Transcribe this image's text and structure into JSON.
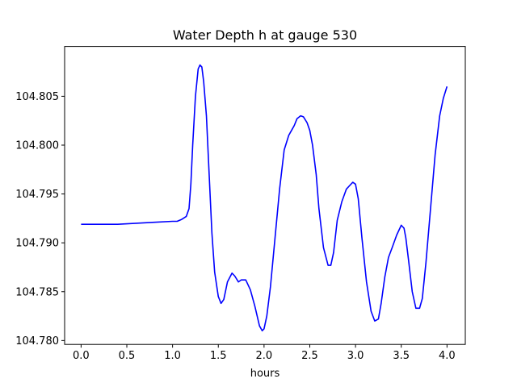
{
  "chart_data": {
    "type": "line",
    "title": "Water Depth h at gauge 530",
    "xlabel": "hours",
    "ylabel": "",
    "xlim": [
      -0.18,
      4.2
    ],
    "ylim": [
      104.7796,
      104.8101
    ],
    "xticks": [
      0.0,
      0.5,
      1.0,
      1.5,
      2.0,
      2.5,
      3.0,
      3.5,
      4.0
    ],
    "xtick_labels": [
      "0.0",
      "0.5",
      "1.0",
      "1.5",
      "2.0",
      "2.5",
      "3.0",
      "3.5",
      "4.0"
    ],
    "yticks": [
      104.78,
      104.785,
      104.79,
      104.795,
      104.8,
      104.805
    ],
    "ytick_labels": [
      "104.780",
      "104.785",
      "104.790",
      "104.795",
      "104.800",
      "104.805"
    ],
    "grid": false,
    "series": [
      {
        "color": "#0000ff",
        "x": [
          0.0,
          0.2,
          0.4,
          0.6,
          0.8,
          1.0,
          1.05,
          1.1,
          1.15,
          1.18,
          1.2,
          1.22,
          1.25,
          1.28,
          1.3,
          1.32,
          1.34,
          1.37,
          1.4,
          1.43,
          1.46,
          1.5,
          1.53,
          1.56,
          1.6,
          1.65,
          1.68,
          1.72,
          1.75,
          1.8,
          1.85,
          1.9,
          1.95,
          1.98,
          2.0,
          2.03,
          2.07,
          2.12,
          2.17,
          2.22,
          2.27,
          2.3,
          2.33,
          2.36,
          2.4,
          2.43,
          2.47,
          2.5,
          2.53,
          2.57,
          2.6,
          2.65,
          2.7,
          2.73,
          2.76,
          2.8,
          2.85,
          2.9,
          2.93,
          2.97,
          3.0,
          3.03,
          3.07,
          3.12,
          3.17,
          3.21,
          3.25,
          3.28,
          3.32,
          3.36,
          3.4,
          3.45,
          3.5,
          3.53,
          3.55,
          3.58,
          3.62,
          3.66,
          3.7,
          3.73,
          3.77,
          3.82,
          3.87,
          3.92,
          3.96,
          4.0
        ],
        "y": [
          104.7919,
          104.7919,
          104.7919,
          104.792,
          104.7921,
          104.7922,
          104.7922,
          104.7924,
          104.7927,
          104.7935,
          104.796,
          104.8,
          104.805,
          104.8078,
          104.8082,
          104.808,
          104.8065,
          104.803,
          104.797,
          104.791,
          104.787,
          104.7845,
          104.7838,
          104.7842,
          104.786,
          104.7869,
          104.7866,
          104.786,
          104.7862,
          104.7862,
          104.7852,
          104.7835,
          104.7815,
          104.781,
          104.7812,
          104.7825,
          104.7855,
          104.7905,
          104.7955,
          104.7995,
          104.801,
          104.8015,
          104.802,
          104.8027,
          104.803,
          104.8029,
          104.8023,
          104.8015,
          104.8,
          104.797,
          104.7935,
          104.7895,
          104.7877,
          104.7877,
          104.789,
          104.7923,
          104.7942,
          104.7955,
          104.7958,
          104.7962,
          104.796,
          104.7945,
          104.7905,
          104.786,
          104.783,
          104.782,
          104.7822,
          104.7838,
          104.7865,
          104.7885,
          104.7895,
          104.7908,
          104.7918,
          104.7915,
          104.7905,
          104.7882,
          104.785,
          104.7833,
          104.7833,
          104.7843,
          104.788,
          104.7935,
          104.799,
          104.803,
          104.8048,
          104.806
        ]
      }
    ]
  }
}
